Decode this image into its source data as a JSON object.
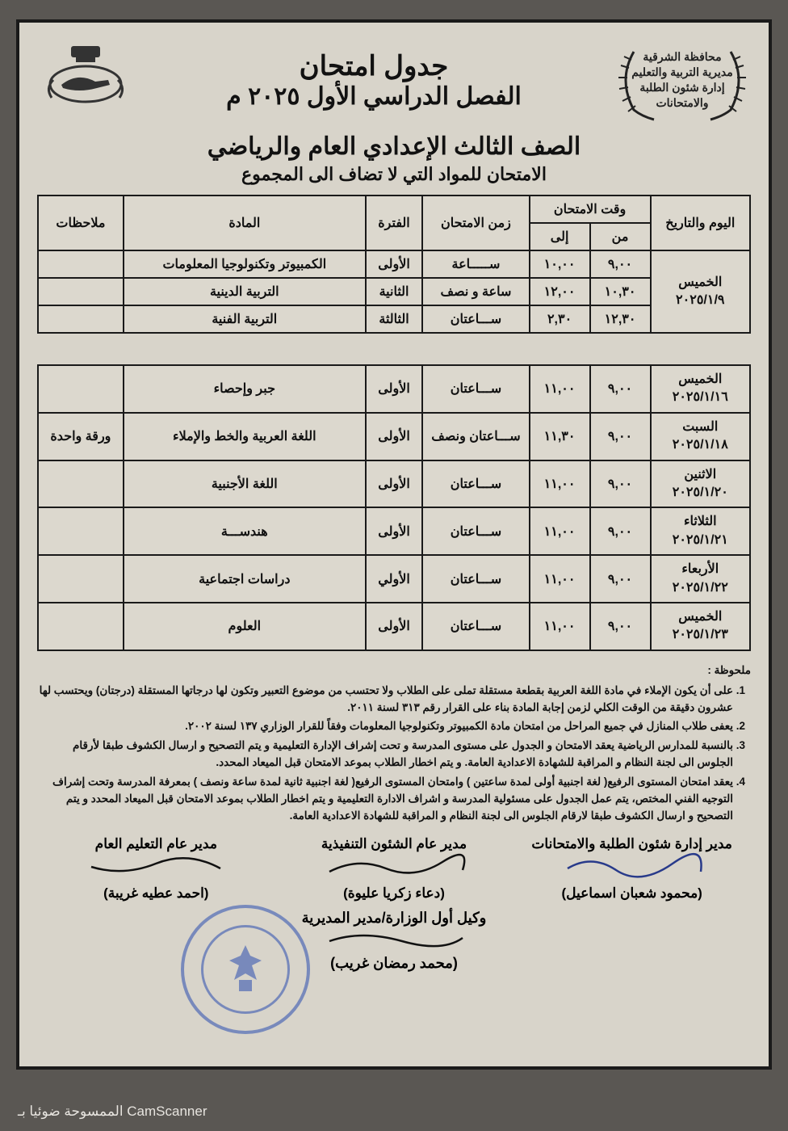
{
  "header": {
    "gov_lines": [
      "محافظة الشرقية",
      "مديرية التربية والتعليم",
      "إدارة شئون الطلبة والامتحانات"
    ],
    "title1": "جدول امتحان",
    "title2": "الفصل الدراسي الأول ٢٠٢٥ م",
    "grade": "الصف الثالث الإعدادي العام والرياضي",
    "subline": "الامتحان للمواد التي لا تضاف الى المجموع"
  },
  "cols": {
    "date": "اليوم والتاريخ",
    "time_group": "وقت الامتحان",
    "from": "من",
    "to": "إلى",
    "duration": "زمن الامتحان",
    "period": "الفترة",
    "subject": "المادة",
    "notes": "ملاحظات"
  },
  "table1": {
    "date_day": "الخميس",
    "date_date": "٢٠٢٥/١/٩",
    "rows": [
      {
        "from": "٩,٠٠",
        "to": "١٠,٠٠",
        "duration": "ســـــاعة",
        "period": "الأولى",
        "subject": "الكمبيوتر وتكنولوجيا المعلومات",
        "notes": ""
      },
      {
        "from": "١٠,٣٠",
        "to": "١٢,٠٠",
        "duration": "ساعة و نصف",
        "period": "الثانية",
        "subject": "التربية الدينية",
        "notes": ""
      },
      {
        "from": "١٢,٣٠",
        "to": "٢,٣٠",
        "duration": "ســـاعتان",
        "period": "الثالثة",
        "subject": "التربية الفنية",
        "notes": ""
      }
    ]
  },
  "table2": {
    "rows": [
      {
        "day": "الخميس",
        "date": "٢٠٢٥/١/١٦",
        "from": "٩,٠٠",
        "to": "١١,٠٠",
        "duration": "ســـاعتان",
        "period": "الأولى",
        "subject": "جبر وإحصاء",
        "notes": ""
      },
      {
        "day": "السبت",
        "date": "٢٠٢٥/١/١٨",
        "from": "٩,٠٠",
        "to": "١١,٣٠",
        "duration": "ســـاعتان ونصف",
        "period": "الأولى",
        "subject": "اللغة العربية والخط والإملاء",
        "notes": "ورقة واحدة"
      },
      {
        "day": "الاثنين",
        "date": "٢٠٢٥/١/٢٠",
        "from": "٩,٠٠",
        "to": "١١,٠٠",
        "duration": "ســـاعتان",
        "period": "الأولى",
        "subject": "اللغة الأجنبية",
        "notes": ""
      },
      {
        "day": "الثلاثاء",
        "date": "٢٠٢٥/١/٢١",
        "from": "٩,٠٠",
        "to": "١١,٠٠",
        "duration": "ســـاعتان",
        "period": "الأولى",
        "subject": "هندســـة",
        "notes": ""
      },
      {
        "day": "الأربعاء",
        "date": "٢٠٢٥/١/٢٢",
        "from": "٩,٠٠",
        "to": "١١,٠٠",
        "duration": "ســـاعتان",
        "period": "الأولي",
        "subject": "دراسات اجتماعية",
        "notes": ""
      },
      {
        "day": "الخميس",
        "date": "٢٠٢٥/١/٢٣",
        "from": "٩,٠٠",
        "to": "١١,٠٠",
        "duration": "ســـاعتان",
        "period": "الأولى",
        "subject": "العلوم",
        "notes": ""
      }
    ]
  },
  "notes": {
    "heading": "ملحوظة :",
    "items": [
      "على أن يكون الإملاء في مادة اللغة العربية بقطعة مستقلة تملى على الطلاب ولا تحتسب من موضوع التعبير وتكون لها درجاتها المستقلة (درجتان) ويحتسب لها عشرون دقيقة من الوقت الكلي لزمن إجابة المادة بناء على القرار رقم ٣١٣ لسنة ٢٠١١.",
      "يعفى طلاب المنازل في جميع المراحل من امتحان مادة الكمبيوتر وتكنولوجيا المعلومات وفقاً للقرار الوزاري ١٣٧ لسنة ٢٠٠٢.",
      "بالنسبة للمدارس الرياضية يعقد الامتحان و الجدول على مستوى المدرسة و تحت إشراف الإدارة التعليمية  و يتم التصحيح و ارسال الكشوف طبقا لأرقام الجلوس الى لجنة النظام و المراقبة للشهادة الاعدادية العامة. و يتم اخطار الطلاب بموعد الامتحان قبل الميعاد المحدد.",
      "يعقد امتحان المستوى الرفيع( لغة اجنبية أولى لمدة ساعتين ) وامتحان المستوى الرفيع( لغة اجنبية ثانية لمدة ساعة ونصف ) بمعرفة المدرسة وتحت إشراف التوجيه الفني المختص، يتم عمل الجدول على مسئولية المدرسة و اشراف الادارة التعليمية و يتم اخطار الطلاب بموعد الامتحان قبل الميعاد المحدد و يتم التصحيح و ارسال الكشوف طبقا لارقام الجلوس الى لجنة النظام و المراقبة للشهادة الاعدادية العامة."
    ]
  },
  "signatures": {
    "s1_title": "مدير إدارة شئون الطلبة والامتحانات",
    "s1_name": "(محمود شعبان اسماعيل)",
    "s2_title": "مدير عام الشئون التنفيذية",
    "s2_name": "(دعاء زكريا عليوة)",
    "s3_title": "مدير عام التعليم العام",
    "s3_name": "(احمد عطيه غريبة)",
    "mid_title": "وكيل أول الوزارة/مدير المديرية",
    "mid_name": "(محمد رمضان غريب)"
  },
  "footer": "الممسوحة ضوئيا بـ CamScanner"
}
